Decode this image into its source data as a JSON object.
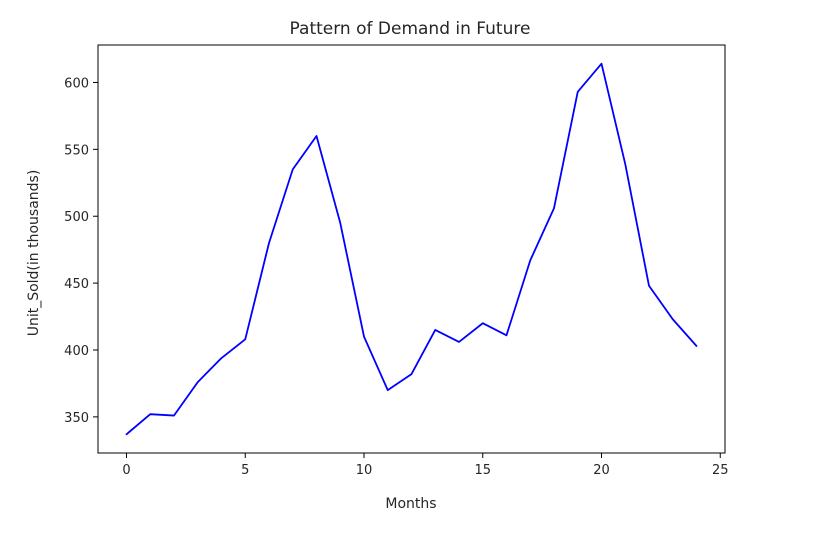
{
  "chart_data": {
    "type": "line",
    "title": "Pattern of Demand in Future",
    "xlabel": "Months",
    "ylabel": "Unit_Sold(in thousands)",
    "xlim": [
      -1.2,
      25.2
    ],
    "ylim": [
      323,
      628
    ],
    "xticks": [
      0,
      5,
      10,
      15,
      20,
      25
    ],
    "yticks": [
      350,
      400,
      450,
      500,
      550,
      600
    ],
    "grid": false,
    "series": [
      {
        "color": "#0000ff",
        "x": [
          0,
          1,
          2,
          3,
          4,
          5,
          6,
          7,
          8,
          9,
          10,
          11,
          12,
          13,
          14,
          15,
          16,
          17,
          18,
          19,
          20,
          21,
          22,
          23,
          24
        ],
        "values": [
          337,
          352,
          351,
          376,
          394,
          408,
          480,
          535,
          560,
          495,
          410,
          370,
          382,
          415,
          406,
          420,
          411,
          467,
          506,
          593,
          614,
          539,
          448,
          423,
          403
        ]
      }
    ]
  }
}
